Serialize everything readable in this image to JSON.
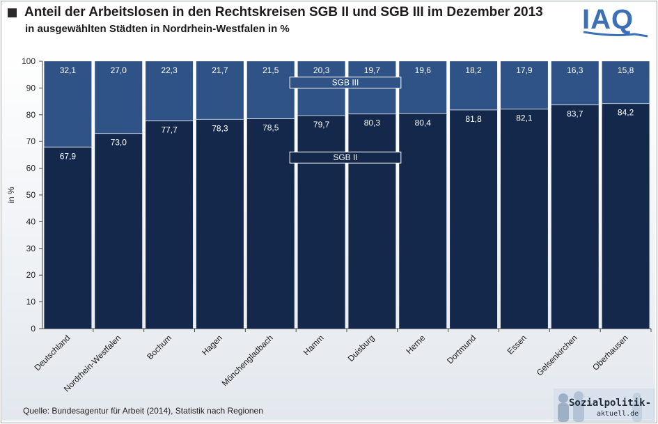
{
  "header": {
    "title": "Anteil der Arbeitslosen in den Rechtskreisen SGB II und SGB III im Dezember 2013",
    "subtitle": "in ausgewählten  Städten in Nordrhein-Westfalen  in %",
    "logo_text": "IAQ"
  },
  "footer": {
    "source": "Quelle:  Bundesagentur  für Arbeit (2014),  Statistik  nach Regionen",
    "watermark_main": "Sozialpolitik-",
    "watermark_sub": "aktuell.de"
  },
  "colors": {
    "sgb2": "#14284b",
    "sgb3": "#2f5287"
  },
  "chart_data": {
    "type": "bar",
    "stacked": true,
    "title": "Anteil der Arbeitslosen in den Rechtskreisen SGB II und SGB III im Dezember 2013",
    "xlabel": "",
    "ylabel": "in %",
    "ylim": [
      0,
      100
    ],
    "yticks": [
      0,
      10,
      20,
      30,
      40,
      50,
      60,
      70,
      80,
      90,
      100
    ],
    "grid": false,
    "legend": "inline labels over the Hamm and Duisburg bars",
    "categories": [
      "Deutschland",
      "Nordrhein-Westfalen",
      "Bochum",
      "Hagen",
      "Mönchengladbach",
      "Hamm",
      "Duisburg",
      "Herne",
      "Dortmund",
      "Essen",
      "Gelsenkirchen",
      "Oberhausen"
    ],
    "series": [
      {
        "name": "SGB II",
        "values": [
          67.9,
          73.0,
          77.7,
          78.3,
          78.5,
          79.7,
          80.3,
          80.4,
          81.8,
          82.1,
          83.7,
          84.2
        ]
      },
      {
        "name": "SGB III",
        "values": [
          32.1,
          27.0,
          22.3,
          21.7,
          21.5,
          20.3,
          19.7,
          19.6,
          18.2,
          17.9,
          16.3,
          15.8
        ]
      }
    ],
    "value_labels": {
      "sgb2": [
        "67,9",
        "73,0",
        "77,7",
        "78,3",
        "78,5",
        "79,7",
        "80,3",
        "80,4",
        "81,8",
        "82,1",
        "83,7",
        "84,2"
      ],
      "sgb3": [
        "32,1",
        "27,0",
        "22,3",
        "21,7",
        "21,5",
        "20,3",
        "19,7",
        "19,6",
        "18,2",
        "17,9",
        "16,3",
        "15,8"
      ]
    }
  }
}
